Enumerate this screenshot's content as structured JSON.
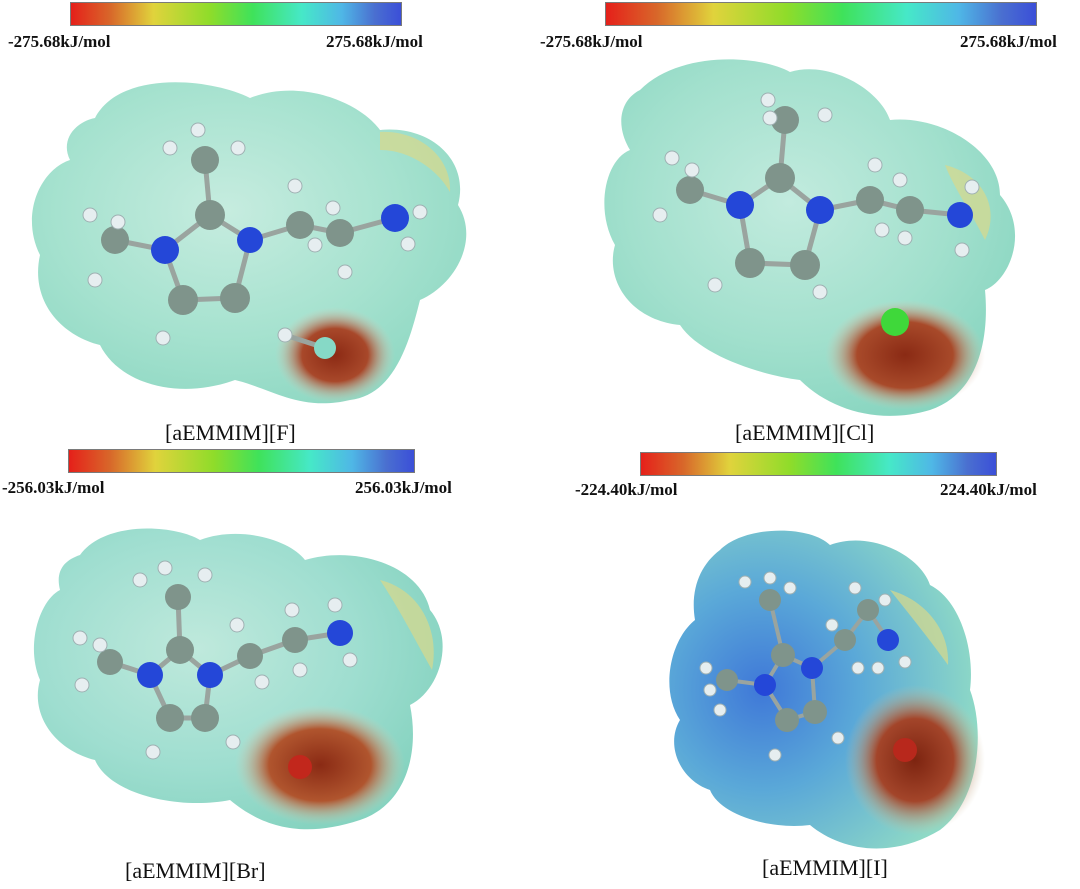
{
  "colors": {
    "bar_red": "#e5201a",
    "bar_yellow": "#e0d33c",
    "bar_green": "#3fe25a",
    "bar_cyan": "#46e8c8",
    "bar_blue": "#3b4fd8",
    "surface_neutral": "#a8e2cf",
    "surface_negative": "#9a3a1e",
    "surface_positive": "#3c6fd6",
    "atom_carbon": "#7f948b",
    "atom_nitrogen": "#2447d8",
    "atom_hydrogen": "#e6eef0",
    "atom_fluorine": "#86d9c6",
    "atom_chlorine": "#3fd83a",
    "atom_bromine": "#c2271c",
    "atom_iodine": "#b8281c"
  },
  "panels": [
    {
      "id": "F",
      "min_label": "-275.68kJ/mol",
      "max_label": "275.68kJ/mol",
      "caption": "[aEMMIM][F]",
      "anion": "F"
    },
    {
      "id": "Cl",
      "min_label": "-275.68kJ/mol",
      "max_label": "275.68kJ/mol",
      "caption": "[aEMMIM][Cl]",
      "anion": "Cl"
    },
    {
      "id": "Br",
      "min_label": "-256.03kJ/mol",
      "max_label": "256.03kJ/mol",
      "caption": "[aEMMIM][Br]",
      "anion": "Br"
    },
    {
      "id": "I",
      "min_label": "-224.40kJ/mol",
      "max_label": "224.40kJ/mol",
      "caption": "[aEMMIM][I]",
      "anion": "I"
    }
  ]
}
